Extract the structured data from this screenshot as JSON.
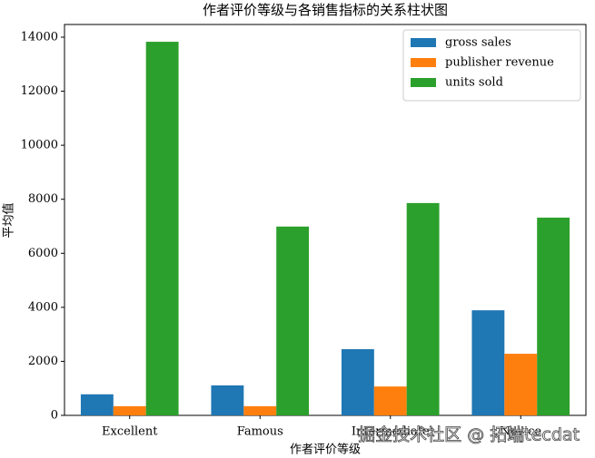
{
  "chart_data": {
    "type": "bar",
    "title": "作者评价等级与各销售指标的关系柱状图",
    "x_label": "作者评价等级",
    "y_label": "平均值",
    "categories": [
      "Excellent",
      "Famous",
      "Intermediate",
      "Novice"
    ],
    "series": [
      {
        "name": "gross sales",
        "color": "#1f77b4",
        "values": [
          780,
          1110,
          2450,
          3890
        ]
      },
      {
        "name": "publisher revenue",
        "color": "#ff7f0e",
        "values": [
          340,
          340,
          1070,
          2280
        ]
      },
      {
        "name": "units sold",
        "color": "#2ca02c",
        "values": [
          13830,
          6990,
          7860,
          7320
        ]
      }
    ],
    "ylim": [
      0,
      14470
    ],
    "yticks": [
      0,
      2000,
      4000,
      6000,
      8000,
      10000,
      12000,
      14000
    ],
    "grid": false,
    "legend": "upper right",
    "watermark": "掘金技术社区 @ 拓端tecdat"
  }
}
